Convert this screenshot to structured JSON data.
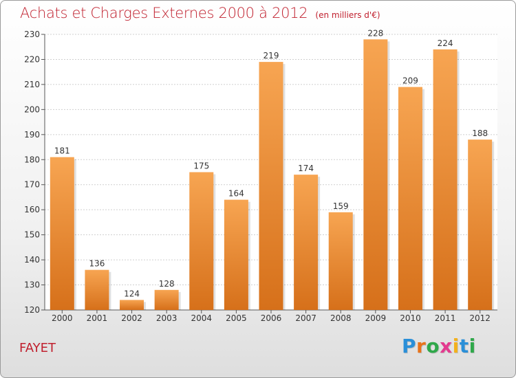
{
  "title": "Achats et Charges Externes 2000 à 2012",
  "subtitle": "(en milliers d'€)",
  "commune": "FAYET",
  "logo": {
    "letters": [
      "P",
      "r",
      "o",
      "x",
      "i",
      "t",
      "i"
    ],
    "colors": [
      "#2a8fd8",
      "#e8731a",
      "#2fa84a",
      "#e33b8f",
      "#f3b11c",
      "#2a8fd8",
      "#2fa84a"
    ]
  },
  "colors": {
    "bar_top": "#f7a552",
    "bar_bottom": "#d6701a",
    "title": "#c0202e"
  },
  "chart_data": {
    "type": "bar",
    "categories": [
      "2000",
      "2001",
      "2002",
      "2003",
      "2004",
      "2005",
      "2006",
      "2007",
      "2008",
      "2009",
      "2010",
      "2011",
      "2012"
    ],
    "values": [
      181,
      136,
      124,
      128,
      175,
      164,
      219,
      174,
      159,
      228,
      209,
      224,
      188
    ],
    "title": "Achats et Charges Externes 2000 à 2012",
    "xlabel": "",
    "ylabel": "",
    "ylim": [
      120,
      230
    ],
    "yticks": [
      120,
      130,
      140,
      150,
      160,
      170,
      180,
      190,
      200,
      210,
      220,
      230
    ],
    "grid": true,
    "legend": "none"
  }
}
